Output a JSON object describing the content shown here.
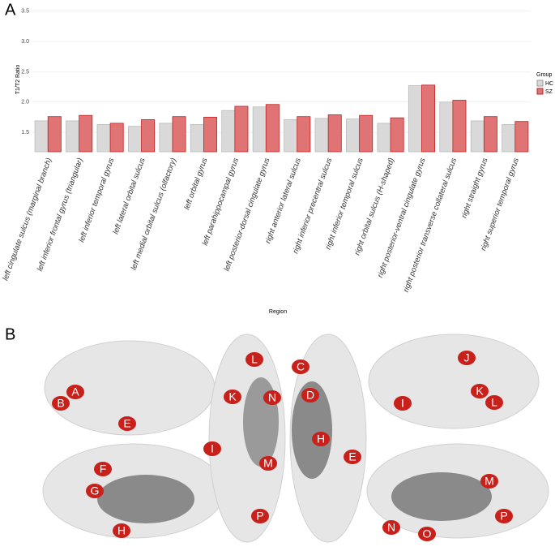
{
  "panels": [
    "A",
    "B"
  ],
  "chart_data": {
    "type": "bar",
    "y_label": "T1/T2 Ratio",
    "x_label": "Region",
    "legend_title": "Group",
    "categories": [
      "left cingulate sulcus (marginal branch)",
      "left inferior frontal gyrus (triangular)",
      "left inferior temporal gyrus",
      "left lateral orbital sulcus",
      "left medial orbital sulcus (olfactory)",
      "left orbital gyrus",
      "left parahippocampal gyrus",
      "left posterior-dorsal cingulate gyrus",
      "right anterior lateral sulcus",
      "right inferior precentral sulcus",
      "right inferior temporal sulcus",
      "right orbital sulcus (H-shaped)",
      "right posterior-ventral cingulate gyrus",
      "right posterior transverse collateral sulcus",
      "right straight gyrus",
      "right superior temporal gyrus"
    ],
    "series": [
      {
        "name": "HC",
        "color": "#d9d9d9",
        "values": [
          1.69,
          1.69,
          1.63,
          1.6,
          1.65,
          1.63,
          1.86,
          1.92,
          1.71,
          1.73,
          1.72,
          1.65,
          2.27,
          2.0,
          1.69,
          1.63
        ]
      },
      {
        "name": "SZ",
        "color": "#e07474",
        "values": [
          1.76,
          1.78,
          1.65,
          1.71,
          1.76,
          1.75,
          1.93,
          1.96,
          1.76,
          1.79,
          1.78,
          1.74,
          2.28,
          2.03,
          1.76,
          1.68
        ]
      }
    ],
    "ylim": [
      1.18,
      3.55
    ],
    "yticks": [
      {
        "value": 1.5,
        "label": "1.5"
      },
      {
        "value": 2,
        "label": "2.0"
      },
      {
        "value": 2.5,
        "label": "2.5"
      },
      {
        "value": 3,
        "label": "3.0"
      },
      {
        "value": 3.5,
        "label": "3.5"
      }
    ],
    "grid": true
  },
  "brain_labels": [
    "A",
    "B",
    "E",
    "F",
    "G",
    "H",
    "L",
    "K",
    "N",
    "I",
    "M",
    "P",
    "C",
    "D",
    "H",
    "E",
    "J",
    "K",
    "L",
    "I",
    "M",
    "N",
    "O",
    "P"
  ]
}
